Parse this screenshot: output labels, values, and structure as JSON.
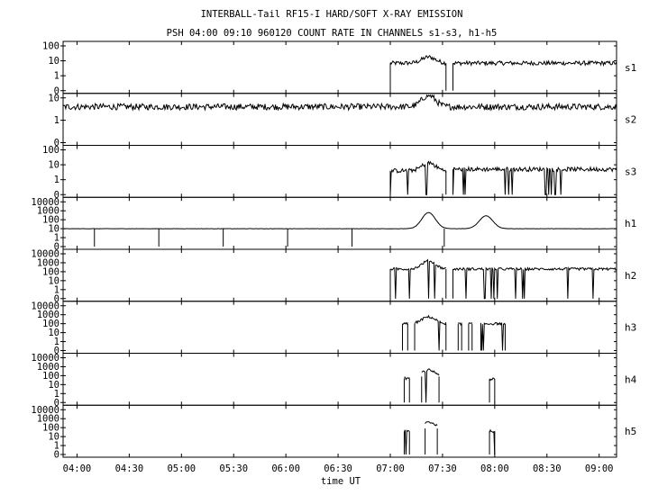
{
  "title": "INTERBALL-Tail RF15-I HARD/SOFT X-RAY EMISSION",
  "subtitle": "PSH 04:00 09:10 960120  COUNT RATE IN CHANNELS s1-s3, h1-h5",
  "chart_data": {
    "type": "line",
    "xlabel": "time UT",
    "x_ticks": [
      "04:00",
      "04:30",
      "05:00",
      "05:30",
      "06:00",
      "06:30",
      "07:00",
      "07:30",
      "08:00",
      "08:30",
      "09:00"
    ],
    "x_range": [
      "03:52",
      "09:10"
    ],
    "y_scale": "log",
    "panels": [
      {
        "name": "s1",
        "y_ticks": [
          "100",
          "10",
          "1",
          "0"
        ],
        "segments": [
          {
            "start": "07:00",
            "end": "07:32",
            "level": 7
          },
          {
            "start": "07:36",
            "end": "09:10",
            "level": 7
          }
        ],
        "peaks": [
          {
            "time": "07:22",
            "value": 20
          }
        ]
      },
      {
        "name": "s2",
        "y_ticks": [
          "10",
          "1",
          "0"
        ],
        "segments": [
          {
            "start": "03:52",
            "end": "09:10",
            "level": 4
          }
        ],
        "peaks": [
          {
            "time": "07:22",
            "value": 15
          }
        ]
      },
      {
        "name": "s3",
        "y_ticks": [
          "100",
          "10",
          "1",
          "0"
        ],
        "segments": [
          {
            "start": "07:00",
            "end": "07:32",
            "level": 4
          },
          {
            "start": "07:36",
            "end": "09:10",
            "level": 5
          }
        ],
        "peaks": [
          {
            "time": "07:22",
            "value": 15
          }
        ]
      },
      {
        "name": "h1",
        "y_ticks": [
          "10000",
          "1000",
          "100",
          "10",
          "1",
          "0"
        ],
        "segments": [
          {
            "start": "03:52",
            "end": "09:10",
            "level": 10
          }
        ],
        "peaks": [
          {
            "time": "07:22",
            "value": 1000
          },
          {
            "time": "07:55",
            "value": 400
          }
        ],
        "dropouts": [
          "04:10",
          "04:47",
          "05:24",
          "06:01",
          "06:38",
          "07:31"
        ]
      },
      {
        "name": "h2",
        "y_ticks": [
          "10000",
          "1000",
          "100",
          "10",
          "1",
          "0"
        ],
        "segments": [
          {
            "start": "07:00",
            "end": "07:32",
            "level": 200
          },
          {
            "start": "07:36",
            "end": "09:10",
            "level": 200
          }
        ],
        "peaks": [
          {
            "time": "07:22",
            "value": 2000
          }
        ]
      },
      {
        "name": "h3",
        "y_ticks": [
          "10000",
          "1000",
          "100",
          "10",
          "1",
          "0"
        ],
        "segments": [
          {
            "start": "07:07",
            "end": "07:10",
            "level": 100
          },
          {
            "start": "07:14",
            "end": "07:32",
            "level": 100
          },
          {
            "start": "07:39",
            "end": "07:41",
            "level": 100
          },
          {
            "start": "07:45",
            "end": "07:47",
            "level": 100
          },
          {
            "start": "07:52",
            "end": "08:06",
            "level": 100
          }
        ],
        "peaks": [
          {
            "time": "07:22",
            "value": 700
          }
        ]
      },
      {
        "name": "h4",
        "y_ticks": [
          "10000",
          "1000",
          "100",
          "10",
          "1",
          "0"
        ],
        "segments": [
          {
            "start": "07:08",
            "end": "07:11",
            "level": 50
          },
          {
            "start": "07:18",
            "end": "07:28",
            "level": 80
          },
          {
            "start": "07:57",
            "end": "08:00",
            "level": 40
          }
        ],
        "peaks": [
          {
            "time": "07:22",
            "value": 500
          }
        ]
      },
      {
        "name": "h5",
        "y_ticks": [
          "10000",
          "1000",
          "100",
          "10",
          "1",
          "0"
        ],
        "segments": [
          {
            "start": "07:08",
            "end": "07:11",
            "level": 40
          },
          {
            "start": "07:20",
            "end": "07:27",
            "level": 80
          },
          {
            "start": "07:57",
            "end": "08:00",
            "level": 40
          }
        ],
        "peaks": [
          {
            "time": "07:22",
            "value": 500
          }
        ]
      }
    ]
  }
}
